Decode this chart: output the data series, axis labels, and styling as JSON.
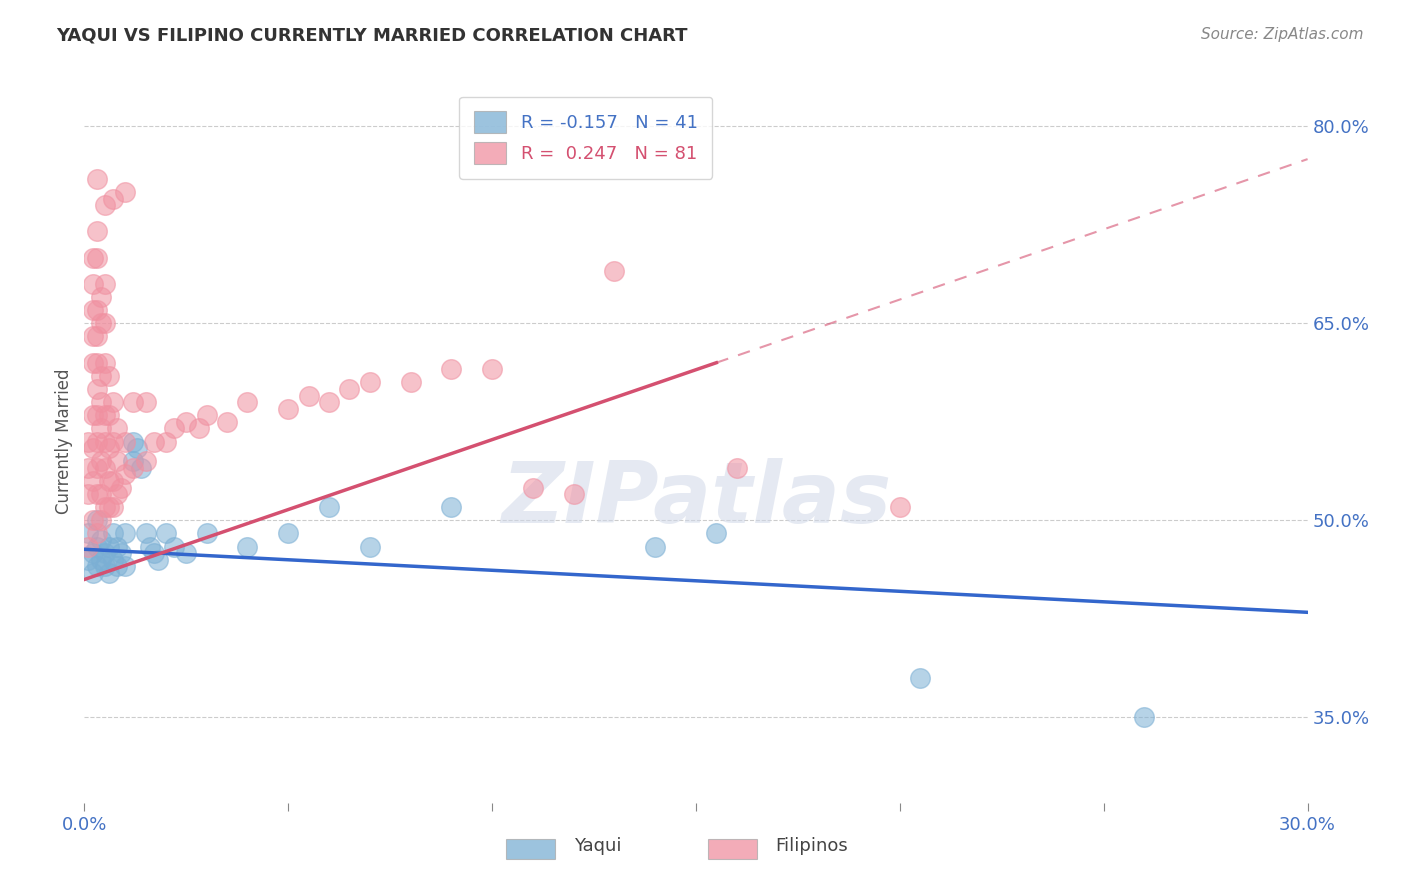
{
  "title": "YAQUI VS FILIPINO CURRENTLY MARRIED CORRELATION CHART",
  "source_text": "Source: ZipAtlas.com",
  "ylabel": "Currently Married",
  "xmin": 0.0,
  "xmax": 0.3,
  "ymin": 0.285,
  "ymax": 0.835,
  "yticks": [
    0.35,
    0.5,
    0.65,
    0.8
  ],
  "ytick_labels": [
    "35.0%",
    "50.0%",
    "65.0%",
    "80.0%"
  ],
  "xticks": [
    0.0,
    0.05,
    0.1,
    0.15,
    0.2,
    0.25,
    0.3
  ],
  "xtick_labels": [
    "0.0%",
    "",
    "",
    "",
    "",
    "",
    "30.0%"
  ],
  "yaqui_color": "#7bafd4",
  "filipino_color": "#f090a0",
  "trendline_yaqui_color": "#3366cc",
  "trendline_filipino_color": "#d45070",
  "watermark_text": "ZIPatlas",
  "background_color": "#ffffff",
  "grid_color": "#cccccc",
  "legend_R_yaqui": "R = -0.157",
  "legend_N_yaqui": "N = 41",
  "legend_R_filipino": "R =  0.247",
  "legend_N_filipino": "N = 81",
  "legend_label_yaqui": "Yaqui",
  "legend_label_filipino": "Filipinos",
  "trendline_yaqui": [
    [
      0.0,
      0.478
    ],
    [
      0.3,
      0.43
    ]
  ],
  "trendline_filipino_solid": [
    [
      0.0,
      0.455
    ],
    [
      0.155,
      0.62
    ]
  ],
  "trendline_filipino_dashed": [
    [
      0.155,
      0.62
    ],
    [
      0.3,
      0.775
    ]
  ],
  "yaqui_points": [
    [
      0.001,
      0.47
    ],
    [
      0.001,
      0.49
    ],
    [
      0.002,
      0.475
    ],
    [
      0.002,
      0.46
    ],
    [
      0.003,
      0.48
    ],
    [
      0.003,
      0.465
    ],
    [
      0.003,
      0.5
    ],
    [
      0.004,
      0.47
    ],
    [
      0.004,
      0.485
    ],
    [
      0.005,
      0.465
    ],
    [
      0.005,
      0.475
    ],
    [
      0.006,
      0.48
    ],
    [
      0.006,
      0.46
    ],
    [
      0.007,
      0.49
    ],
    [
      0.007,
      0.47
    ],
    [
      0.008,
      0.465
    ],
    [
      0.008,
      0.48
    ],
    [
      0.009,
      0.475
    ],
    [
      0.01,
      0.49
    ],
    [
      0.01,
      0.465
    ],
    [
      0.012,
      0.56
    ],
    [
      0.012,
      0.545
    ],
    [
      0.013,
      0.555
    ],
    [
      0.014,
      0.54
    ],
    [
      0.015,
      0.49
    ],
    [
      0.016,
      0.48
    ],
    [
      0.017,
      0.475
    ],
    [
      0.018,
      0.47
    ],
    [
      0.02,
      0.49
    ],
    [
      0.022,
      0.48
    ],
    [
      0.025,
      0.475
    ],
    [
      0.03,
      0.49
    ],
    [
      0.04,
      0.48
    ],
    [
      0.05,
      0.49
    ],
    [
      0.06,
      0.51
    ],
    [
      0.07,
      0.48
    ],
    [
      0.09,
      0.51
    ],
    [
      0.14,
      0.48
    ],
    [
      0.155,
      0.49
    ],
    [
      0.205,
      0.38
    ],
    [
      0.26,
      0.35
    ]
  ],
  "filipino_points": [
    [
      0.001,
      0.48
    ],
    [
      0.001,
      0.52
    ],
    [
      0.001,
      0.54
    ],
    [
      0.001,
      0.56
    ],
    [
      0.002,
      0.5
    ],
    [
      0.002,
      0.53
    ],
    [
      0.002,
      0.555
    ],
    [
      0.002,
      0.58
    ],
    [
      0.002,
      0.62
    ],
    [
      0.002,
      0.64
    ],
    [
      0.002,
      0.66
    ],
    [
      0.002,
      0.68
    ],
    [
      0.002,
      0.7
    ],
    [
      0.003,
      0.49
    ],
    [
      0.003,
      0.52
    ],
    [
      0.003,
      0.54
    ],
    [
      0.003,
      0.56
    ],
    [
      0.003,
      0.58
    ],
    [
      0.003,
      0.6
    ],
    [
      0.003,
      0.62
    ],
    [
      0.003,
      0.64
    ],
    [
      0.003,
      0.66
    ],
    [
      0.003,
      0.7
    ],
    [
      0.003,
      0.72
    ],
    [
      0.004,
      0.5
    ],
    [
      0.004,
      0.52
    ],
    [
      0.004,
      0.545
    ],
    [
      0.004,
      0.57
    ],
    [
      0.004,
      0.59
    ],
    [
      0.004,
      0.61
    ],
    [
      0.004,
      0.65
    ],
    [
      0.004,
      0.67
    ],
    [
      0.005,
      0.51
    ],
    [
      0.005,
      0.54
    ],
    [
      0.005,
      0.56
    ],
    [
      0.005,
      0.58
    ],
    [
      0.005,
      0.62
    ],
    [
      0.005,
      0.65
    ],
    [
      0.005,
      0.68
    ],
    [
      0.006,
      0.51
    ],
    [
      0.006,
      0.53
    ],
    [
      0.006,
      0.555
    ],
    [
      0.006,
      0.58
    ],
    [
      0.006,
      0.61
    ],
    [
      0.007,
      0.51
    ],
    [
      0.007,
      0.53
    ],
    [
      0.007,
      0.56
    ],
    [
      0.007,
      0.59
    ],
    [
      0.008,
      0.52
    ],
    [
      0.008,
      0.545
    ],
    [
      0.008,
      0.57
    ],
    [
      0.009,
      0.525
    ],
    [
      0.01,
      0.535
    ],
    [
      0.01,
      0.56
    ],
    [
      0.012,
      0.54
    ],
    [
      0.012,
      0.59
    ],
    [
      0.015,
      0.545
    ],
    [
      0.015,
      0.59
    ],
    [
      0.017,
      0.56
    ],
    [
      0.02,
      0.56
    ],
    [
      0.022,
      0.57
    ],
    [
      0.025,
      0.575
    ],
    [
      0.028,
      0.57
    ],
    [
      0.03,
      0.58
    ],
    [
      0.035,
      0.575
    ],
    [
      0.04,
      0.59
    ],
    [
      0.05,
      0.585
    ],
    [
      0.055,
      0.595
    ],
    [
      0.06,
      0.59
    ],
    [
      0.065,
      0.6
    ],
    [
      0.07,
      0.605
    ],
    [
      0.08,
      0.605
    ],
    [
      0.09,
      0.615
    ],
    [
      0.1,
      0.615
    ],
    [
      0.11,
      0.525
    ],
    [
      0.12,
      0.52
    ],
    [
      0.13,
      0.69
    ],
    [
      0.16,
      0.54
    ],
    [
      0.2,
      0.51
    ],
    [
      0.003,
      0.76
    ],
    [
      0.005,
      0.74
    ],
    [
      0.007,
      0.745
    ],
    [
      0.01,
      0.75
    ]
  ]
}
